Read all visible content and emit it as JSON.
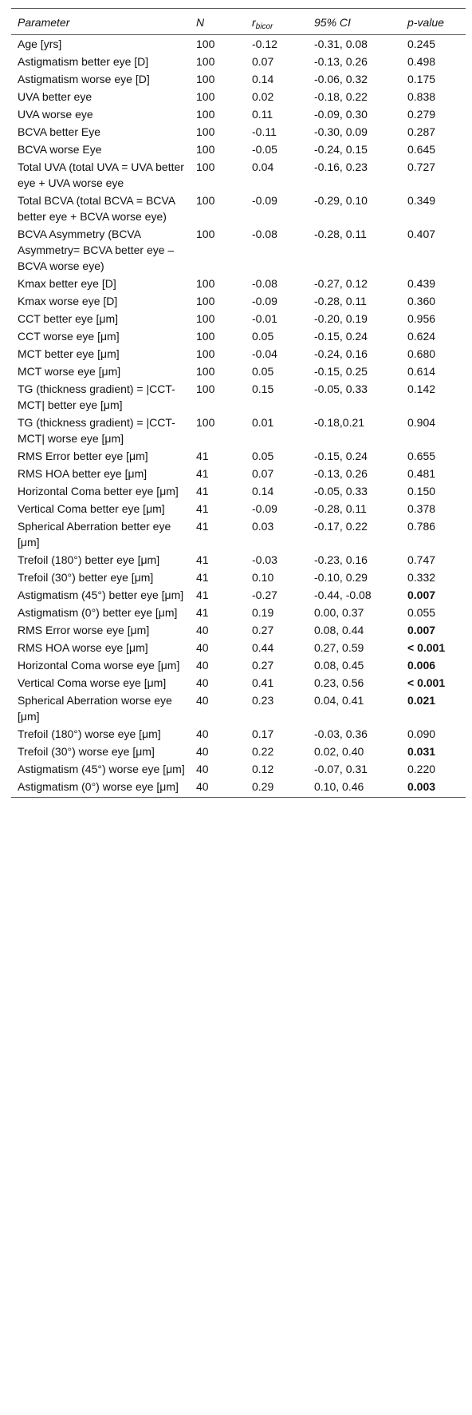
{
  "table": {
    "header": {
      "parameter": "Parameter",
      "n": "N",
      "r": {
        "text": "r",
        "sub": "bicor"
      },
      "ci": "95% CI",
      "p": "p-value"
    },
    "rows": [
      {
        "parameter": "Age [yrs]",
        "n": "100",
        "r": "-0.12",
        "ci": "-0.31, 0.08",
        "p": "0.245"
      },
      {
        "parameter": "Astigmatism better eye [D]",
        "n": "100",
        "r": "0.07",
        "ci": "-0.13, 0.26",
        "p": "0.498"
      },
      {
        "parameter": "Astigmatism worse eye [D]",
        "n": "100",
        "r": "0.14",
        "ci": "-0.06, 0.32",
        "p": "0.175"
      },
      {
        "parameter": "UVA better eye",
        "n": "100",
        "r": "0.02",
        "ci": "-0.18, 0.22",
        "p": "0.838"
      },
      {
        "parameter": "UVA worse eye",
        "n": "100",
        "r": "0.11",
        "ci": "-0.09, 0.30",
        "p": "0.279"
      },
      {
        "parameter": "BCVA better Eye",
        "n": "100",
        "r": "-0.11",
        "ci": "-0.30, 0.09",
        "p": "0.287"
      },
      {
        "parameter": "BCVA worse Eye",
        "n": "100",
        "r": "-0.05",
        "ci": "-0.24, 0.15",
        "p": "0.645"
      },
      {
        "parameter": "Total UVA (total UVA = UVA better eye + UVA worse eye",
        "n": "100",
        "r": "0.04",
        "ci": "-0.16, 0.23",
        "p": "0.727"
      },
      {
        "parameter": "Total BCVA (total BCVA = BCVA better eye + BCVA worse eye)",
        "n": "100",
        "r": "-0.09",
        "ci": "-0.29, 0.10",
        "p": "0.349"
      },
      {
        "parameter": "BCVA Asymmetry (BCVA Asymmetry= BCVA better eye – BCVA worse eye)",
        "n": "100",
        "r": "-0.08",
        "ci": "-0.28, 0.11",
        "p": "0.407"
      },
      {
        "parameter": "Kmax better eye [D]",
        "n": "100",
        "r": "-0.08",
        "ci": "-0.27, 0.12",
        "p": "0.439"
      },
      {
        "parameter": "Kmax worse eye [D]",
        "n": "100",
        "r": "-0.09",
        "ci": "-0.28, 0.11",
        "p": "0.360"
      },
      {
        "parameter": "CCT better eye [μm]",
        "n": "100",
        "r": "-0.01",
        "ci": "-0.20, 0.19",
        "p": "0.956"
      },
      {
        "parameter": "CCT worse eye [μm]",
        "n": "100",
        "r": "0.05",
        "ci": "-0.15, 0.24",
        "p": "0.624"
      },
      {
        "parameter": "MCT better eye [μm]",
        "n": "100",
        "r": "-0.04",
        "ci": "-0.24, 0.16",
        "p": "0.680"
      },
      {
        "parameter": "MCT worse eye [μm]",
        "n": "100",
        "r": "0.05",
        "ci": "-0.15, 0.25",
        "p": "0.614"
      },
      {
        "parameter": "TG (thickness gradient) = |CCT-MCT| better eye [μm]",
        "n": "100",
        "r": "0.15",
        "ci": "-0.05, 0.33",
        "p": "0.142"
      },
      {
        "parameter": "TG (thickness gradient) = |CCT-MCT| worse eye [μm]",
        "n": "100",
        "r": "0.01",
        "ci": "-0.18,0.21",
        "p": "0.904"
      },
      {
        "parameter": "RMS Error better eye [μm]",
        "n": "41",
        "r": "0.05",
        "ci": "-0.15, 0.24",
        "p": "0.655"
      },
      {
        "parameter": "RMS HOA better eye [μm]",
        "n": "41",
        "r": "0.07",
        "ci": "-0.13, 0.26",
        "p": "0.481"
      },
      {
        "parameter": "Horizontal Coma better eye [μm]",
        "n": "41",
        "r": "0.14",
        "ci": "-0.05, 0.33",
        "p": "0.150"
      },
      {
        "parameter": "Vertical Coma better eye [μm]",
        "n": "41",
        "r": "-0.09",
        "ci": "-0.28, 0.11",
        "p": "0.378"
      },
      {
        "parameter": "Spherical Aberration better eye [μm]",
        "n": "41",
        "r": "0.03",
        "ci": "-0.17, 0.22",
        "p": "0.786"
      },
      {
        "parameter": "Trefoil (180°) better eye [μm]",
        "n": "41",
        "r": "-0.03",
        "ci": "-0.23, 0.16",
        "p": "0.747"
      },
      {
        "parameter": "Trefoil (30°) better eye [μm]",
        "n": "41",
        "r": "0.10",
        "ci": "-0.10, 0.29",
        "p": "0.332"
      },
      {
        "parameter": "Astigmatism (45°) better eye [μm]",
        "n": "41",
        "r": "-0.27",
        "ci": "-0.44, -0.08",
        "p": "0.007",
        "p_bold": true
      },
      {
        "parameter": "Astigmatism (0°) better eye [μm]",
        "n": "41",
        "r": "0.19",
        "ci": "0.00, 0.37",
        "p": "0.055"
      },
      {
        "parameter": "RMS Error worse eye [μm]",
        "n": "40",
        "r": "0.27",
        "ci": "0.08, 0.44",
        "p": "0.007",
        "p_bold": true
      },
      {
        "parameter": "RMS HOA worse eye [μm]",
        "n": "40",
        "r": "0.44",
        "ci": "0.27, 0.59",
        "p": "< 0.001",
        "p_bold": true
      },
      {
        "parameter": "Horizontal Coma worse eye [μm]",
        "n": "40",
        "r": "0.27",
        "ci": "0.08, 0.45",
        "p": "0.006",
        "p_bold": true
      },
      {
        "parameter": "Vertical Coma worse eye [μm]",
        "n": "40",
        "r": "0.41",
        "ci": "0.23, 0.56",
        "p": "< 0.001",
        "p_bold": true
      },
      {
        "parameter": "Spherical Aberration worse eye [μm]",
        "n": "40",
        "r": "0.23",
        "ci": "0.04, 0.41",
        "p": "0.021",
        "p_bold": true
      },
      {
        "parameter": "Trefoil (180°) worse eye [μm]",
        "n": "40",
        "r": "0.17",
        "ci": "-0.03, 0.36",
        "p": "0.090"
      },
      {
        "parameter": "Trefoil (30°) worse eye [μm]",
        "n": "40",
        "r": "0.22",
        "ci": "0.02, 0.40",
        "p": "0.031",
        "p_bold": true
      },
      {
        "parameter": "Astigmatism (45°) worse eye [μm]",
        "n": "40",
        "r": "0.12",
        "ci": "-0.07, 0.31",
        "p": "0.220"
      },
      {
        "parameter": "Astigmatism (0°) worse eye [μm]",
        "n": "40",
        "r": "0.29",
        "ci": "0.10, 0.46",
        "p": "0.003",
        "p_bold": true
      }
    ]
  }
}
